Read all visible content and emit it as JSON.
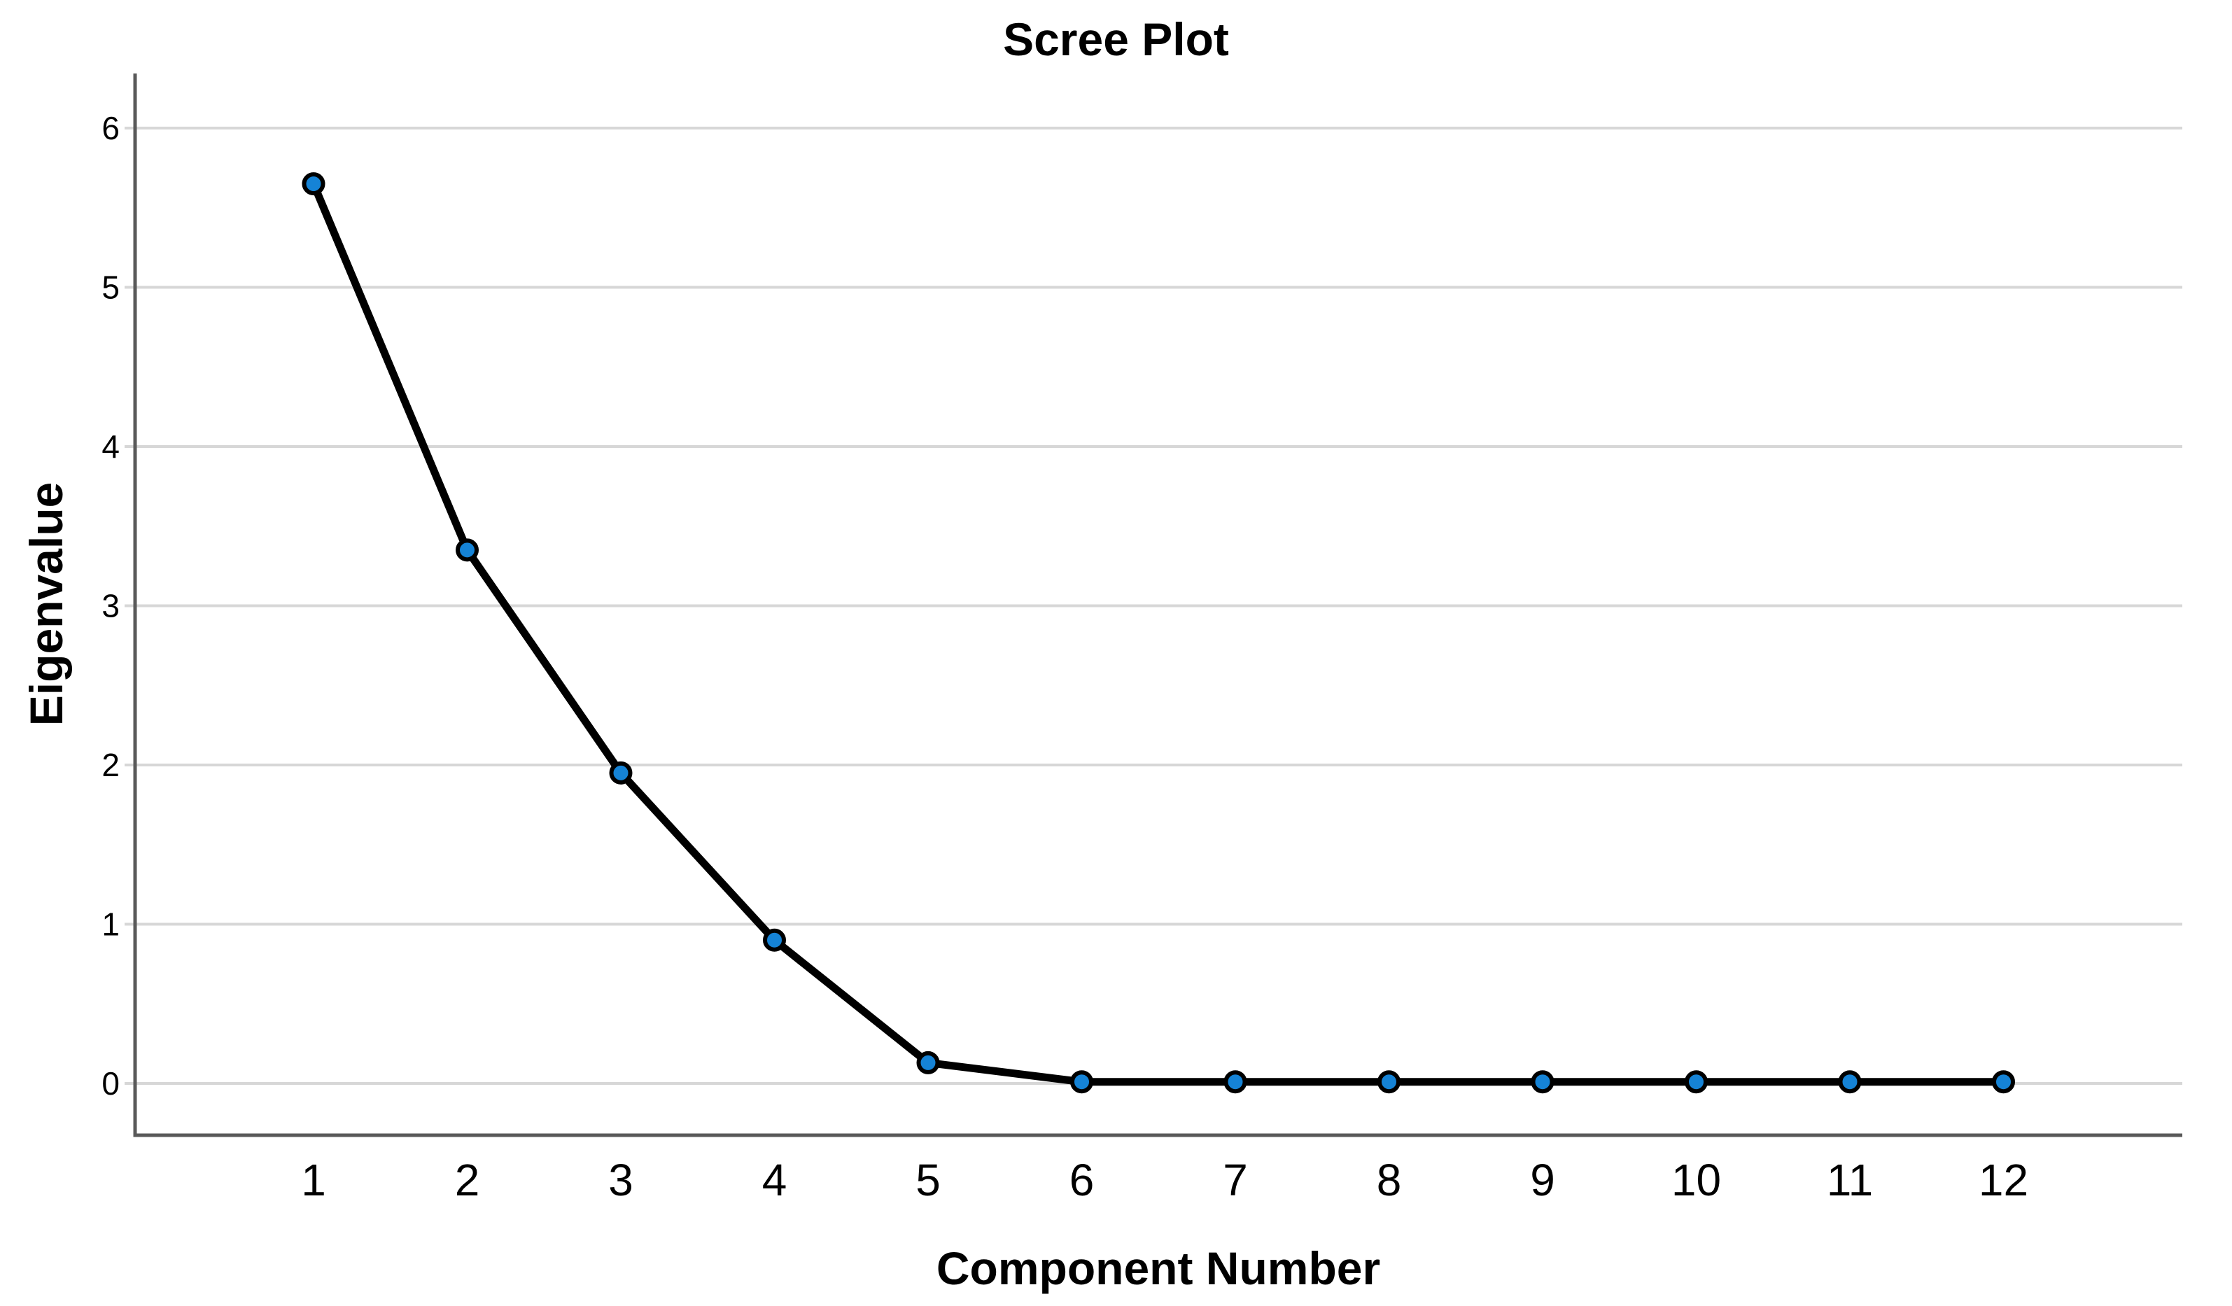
{
  "chart_data": {
    "type": "line",
    "title": "Scree Plot",
    "xlabel": "Component Number",
    "ylabel": "Eigenvalue",
    "categories": [
      "1",
      "2",
      "3",
      "4",
      "5",
      "6",
      "7",
      "8",
      "9",
      "10",
      "11",
      "12"
    ],
    "series": [
      {
        "name": "Eigenvalue",
        "values": [
          5.65,
          3.35,
          1.95,
          0.9,
          0.13,
          0.01,
          0.01,
          0.01,
          0.01,
          0.01,
          0.01,
          0.01
        ]
      }
    ],
    "y_ticks": [
      0,
      1,
      2,
      3,
      4,
      5,
      6
    ],
    "ylim": [
      -0.33,
      6.35
    ],
    "grid": "horizontal gridlines at each integer eigenvalue",
    "legend_position": "none",
    "colors": {
      "marker_fill": "#1583d6",
      "marker_stroke": "#000000",
      "line": "#000000",
      "gridline": "#d7d7d7",
      "axis": "#595959",
      "text": "#000000",
      "background": "#ffffff"
    }
  }
}
